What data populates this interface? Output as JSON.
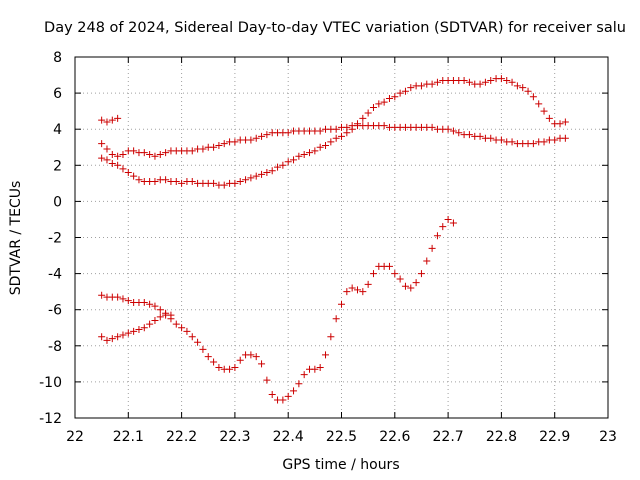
{
  "chart_data": {
    "type": "scatter",
    "title": "Day 248 of 2024, Sidereal Day-to-day VTEC variation (SDTVAR) for receiver salu",
    "xlabel": "GPS time / hours",
    "ylabel": "SDTVAR / TECUs",
    "xlim": [
      22,
      23
    ],
    "ylim": [
      -12,
      8
    ],
    "xticks": [
      "22",
      "22.1",
      "22.2",
      "22.3",
      "22.4",
      "22.5",
      "22.6",
      "22.7",
      "22.8",
      "22.9",
      "23"
    ],
    "yticks": [
      "-12",
      "-10",
      "-8",
      "-6",
      "-4",
      "-2",
      "0",
      "2",
      "4",
      "6",
      "8"
    ],
    "grid": true,
    "marker": "+",
    "color": "#cc0000",
    "series": [
      {
        "name": "arc-top-short",
        "x": [
          22.05,
          22.06,
          22.07,
          22.08
        ],
        "y": [
          4.5,
          4.4,
          4.5,
          4.6
        ]
      },
      {
        "name": "arc-upper-middle",
        "x": [
          22.05,
          22.06,
          22.07,
          22.08,
          22.09,
          22.1,
          22.11,
          22.12,
          22.13,
          22.14,
          22.15,
          22.16,
          22.17,
          22.18,
          22.19,
          22.2,
          22.21,
          22.22,
          22.23,
          22.24,
          22.25,
          22.26,
          22.27,
          22.28,
          22.29,
          22.3,
          22.31,
          22.32,
          22.33,
          22.34,
          22.35,
          22.36,
          22.37,
          22.38,
          22.39,
          22.4,
          22.41,
          22.42,
          22.43,
          22.44,
          22.45,
          22.46,
          22.47,
          22.48,
          22.49,
          22.5,
          22.51,
          22.52,
          22.53,
          22.54,
          22.55,
          22.56,
          22.57,
          22.58,
          22.59,
          22.6,
          22.61,
          22.62,
          22.63,
          22.64,
          22.65,
          22.66,
          22.67,
          22.68,
          22.69,
          22.7,
          22.71,
          22.72,
          22.73,
          22.74,
          22.75,
          22.76,
          22.77,
          22.78,
          22.79,
          22.8,
          22.81,
          22.82,
          22.83,
          22.84,
          22.85,
          22.86,
          22.87,
          22.88,
          22.89,
          22.9,
          22.91,
          22.92
        ],
        "y": [
          3.2,
          2.9,
          2.6,
          2.5,
          2.6,
          2.8,
          2.8,
          2.7,
          2.7,
          2.6,
          2.5,
          2.6,
          2.7,
          2.8,
          2.8,
          2.8,
          2.8,
          2.8,
          2.9,
          2.9,
          3.0,
          3.0,
          3.1,
          3.2,
          3.3,
          3.3,
          3.4,
          3.4,
          3.4,
          3.5,
          3.6,
          3.7,
          3.8,
          3.8,
          3.8,
          3.8,
          3.9,
          3.9,
          3.9,
          3.9,
          3.9,
          3.9,
          4.0,
          4.0,
          4.0,
          4.1,
          4.1,
          4.2,
          4.2,
          4.2,
          4.2,
          4.2,
          4.2,
          4.2,
          4.1,
          4.1,
          4.1,
          4.1,
          4.1,
          4.1,
          4.1,
          4.1,
          4.1,
          4.0,
          4.0,
          4.0,
          3.9,
          3.8,
          3.7,
          3.7,
          3.6,
          3.6,
          3.5,
          3.5,
          3.4,
          3.4,
          3.3,
          3.3,
          3.2,
          3.2,
          3.2,
          3.2,
          3.3,
          3.3,
          3.4,
          3.4,
          3.5,
          3.5
        ]
      },
      {
        "name": "arc-rising",
        "x": [
          22.05,
          22.06,
          22.07,
          22.08,
          22.09,
          22.1,
          22.11,
          22.12,
          22.13,
          22.14,
          22.15,
          22.16,
          22.17,
          22.18,
          22.19,
          22.2,
          22.21,
          22.22,
          22.23,
          22.24,
          22.25,
          22.26,
          22.27,
          22.28,
          22.29,
          22.3,
          22.31,
          22.32,
          22.33,
          22.34,
          22.35,
          22.36,
          22.37,
          22.38,
          22.39,
          22.4,
          22.41,
          22.42,
          22.43,
          22.44,
          22.45,
          22.46,
          22.47,
          22.48,
          22.49,
          22.5,
          22.51,
          22.52,
          22.53,
          22.54,
          22.55,
          22.56,
          22.57,
          22.58,
          22.59,
          22.6,
          22.61,
          22.62,
          22.63,
          22.64,
          22.65,
          22.66,
          22.67,
          22.68,
          22.69,
          22.7,
          22.71,
          22.72,
          22.73,
          22.74,
          22.75,
          22.76,
          22.77,
          22.78,
          22.79,
          22.8,
          22.81,
          22.82,
          22.83,
          22.84,
          22.85,
          22.86,
          22.87,
          22.88,
          22.89,
          22.9,
          22.91,
          22.92
        ],
        "y": [
          2.4,
          2.3,
          2.1,
          2.0,
          1.8,
          1.6,
          1.4,
          1.2,
          1.1,
          1.1,
          1.1,
          1.2,
          1.2,
          1.1,
          1.1,
          1.0,
          1.1,
          1.1,
          1.0,
          1.0,
          1.0,
          1.0,
          0.9,
          0.9,
          1.0,
          1.0,
          1.1,
          1.2,
          1.3,
          1.4,
          1.5,
          1.6,
          1.7,
          1.9,
          2.0,
          2.2,
          2.3,
          2.5,
          2.6,
          2.7,
          2.8,
          3.0,
          3.1,
          3.3,
          3.5,
          3.6,
          3.8,
          4.0,
          4.3,
          4.6,
          4.9,
          5.2,
          5.4,
          5.5,
          5.7,
          5.8,
          6.0,
          6.1,
          6.3,
          6.4,
          6.4,
          6.5,
          6.5,
          6.6,
          6.7,
          6.7,
          6.7,
          6.7,
          6.7,
          6.6,
          6.5,
          6.5,
          6.6,
          6.7,
          6.8,
          6.8,
          6.7,
          6.6,
          6.4,
          6.3,
          6.1,
          5.8,
          5.4,
          5.0,
          4.6,
          4.3,
          4.3,
          4.4
        ]
      },
      {
        "name": "arc-lower",
        "x": [
          22.05,
          22.06,
          22.07,
          22.08,
          22.09,
          22.1,
          22.11,
          22.12,
          22.13,
          22.14,
          22.15,
          22.16,
          22.17,
          22.18,
          22.19,
          22.2,
          22.21,
          22.22,
          22.23,
          22.24,
          22.25,
          22.26,
          22.27,
          22.28,
          22.29,
          22.3,
          22.31,
          22.32,
          22.33,
          22.34,
          22.35,
          22.36,
          22.37,
          22.38,
          22.39,
          22.4,
          22.41,
          22.42,
          22.43,
          22.44,
          22.45,
          22.46,
          22.47,
          22.48,
          22.49,
          22.5,
          22.51,
          22.52,
          22.53,
          22.54,
          22.55,
          22.56,
          22.57,
          22.58,
          22.59,
          22.6,
          22.61,
          22.62,
          22.63,
          22.64,
          22.65,
          22.66,
          22.67,
          22.68,
          22.69,
          22.7,
          22.71
        ],
        "y": [
          -5.2,
          -5.3,
          -5.3,
          -5.3,
          -5.4,
          -5.5,
          -5.6,
          -5.6,
          -5.6,
          -5.7,
          -5.8,
          -6.0,
          -6.2,
          -6.5,
          -6.8,
          -7.0,
          -7.2,
          -7.5,
          -7.8,
          -8.2,
          -8.6,
          -8.9,
          -9.2,
          -9.3,
          -9.3,
          -9.2,
          -8.8,
          -8.5,
          -8.5,
          -8.6,
          -9.0,
          -9.9,
          -10.7,
          -11.0,
          -11.0,
          -10.8,
          -10.5,
          -10.1,
          -9.6,
          -9.3,
          -9.3,
          -9.2,
          -8.5,
          -7.5,
          -6.5,
          -5.7,
          -5.0,
          -4.8,
          -4.9,
          -5.0,
          -4.6,
          -4.0,
          -3.6,
          -3.6,
          -3.6,
          -4.0,
          -4.3,
          -4.7,
          -4.8,
          -4.5,
          -4.0,
          -3.3,
          -2.6,
          -1.9,
          -1.4,
          -1.0,
          -1.2
        ]
      },
      {
        "name": "arc-bottom-left",
        "x": [
          22.05,
          22.06,
          22.07,
          22.08,
          22.09,
          22.1,
          22.11,
          22.12,
          22.13,
          22.14,
          22.15,
          22.16,
          22.17,
          22.18
        ],
        "y": [
          -7.5,
          -7.7,
          -7.6,
          -7.5,
          -7.4,
          -7.3,
          -7.2,
          -7.1,
          -7.0,
          -6.8,
          -6.6,
          -6.4,
          -6.3,
          -6.3
        ]
      }
    ]
  }
}
